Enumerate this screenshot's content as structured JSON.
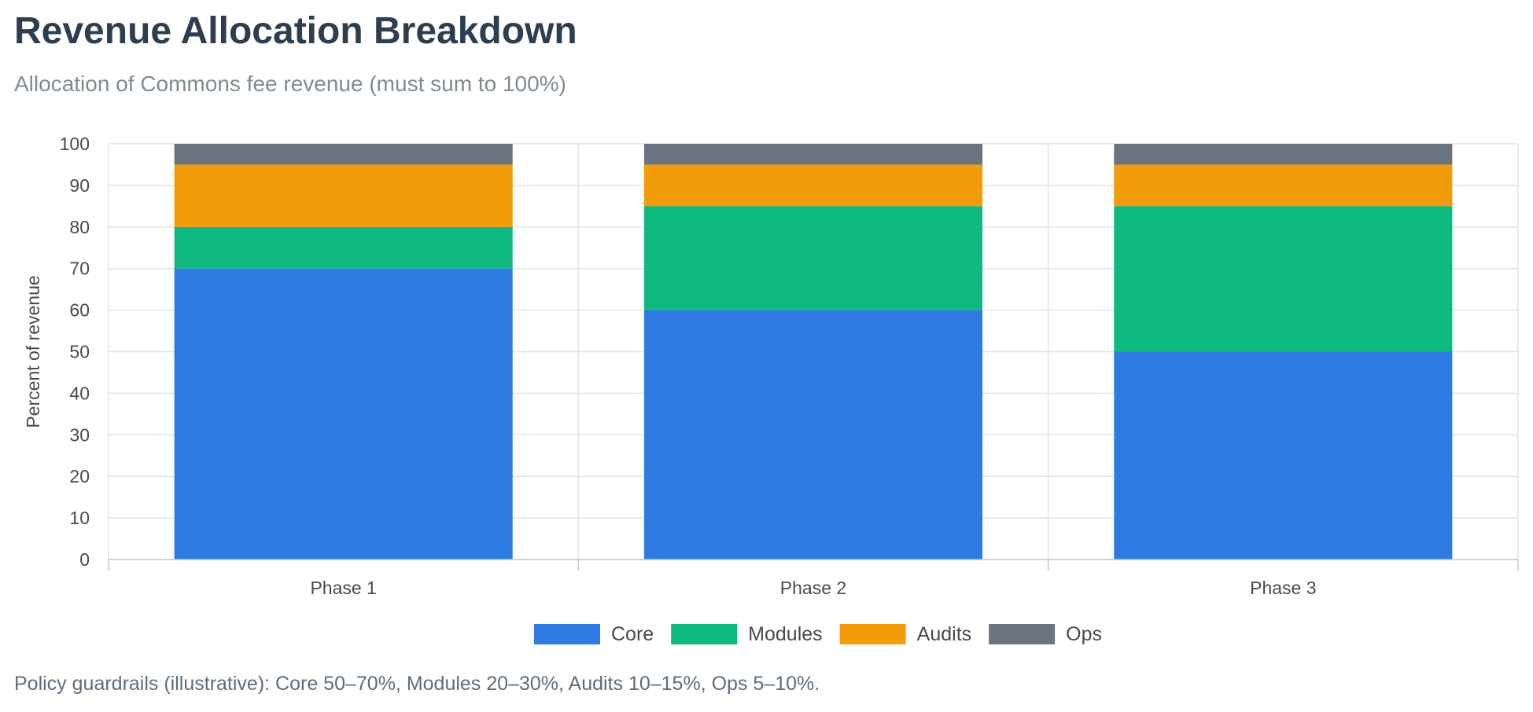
{
  "title": "Revenue Allocation Breakdown",
  "subtitle": "Allocation of Commons fee revenue (must sum to 100%)",
  "footnote": "Policy guardrails (illustrative): Core 50–70%, Modules 20–30%, Audits 10–15%, Ops 5–10%.",
  "chart_data": {
    "type": "bar",
    "stacked": true,
    "categories": [
      "Phase 1",
      "Phase 2",
      "Phase 3"
    ],
    "series": [
      {
        "name": "Core",
        "values": [
          70,
          60,
          50
        ],
        "color": "#2e7be4"
      },
      {
        "name": "Modules",
        "values": [
          10,
          25,
          35
        ],
        "color": "#10b981"
      },
      {
        "name": "Audits",
        "values": [
          15,
          10,
          10
        ],
        "color": "#f39c0b"
      },
      {
        "name": "Ops",
        "values": [
          5,
          5,
          5
        ],
        "color": "#6b7280"
      }
    ],
    "xlabel": "",
    "ylabel": "Percent of revenue",
    "ylim": [
      0,
      100
    ],
    "yticks": [
      0,
      10,
      20,
      30,
      40,
      50,
      60,
      70,
      80,
      90,
      100
    ],
    "grid": true,
    "legend_position": "bottom"
  }
}
